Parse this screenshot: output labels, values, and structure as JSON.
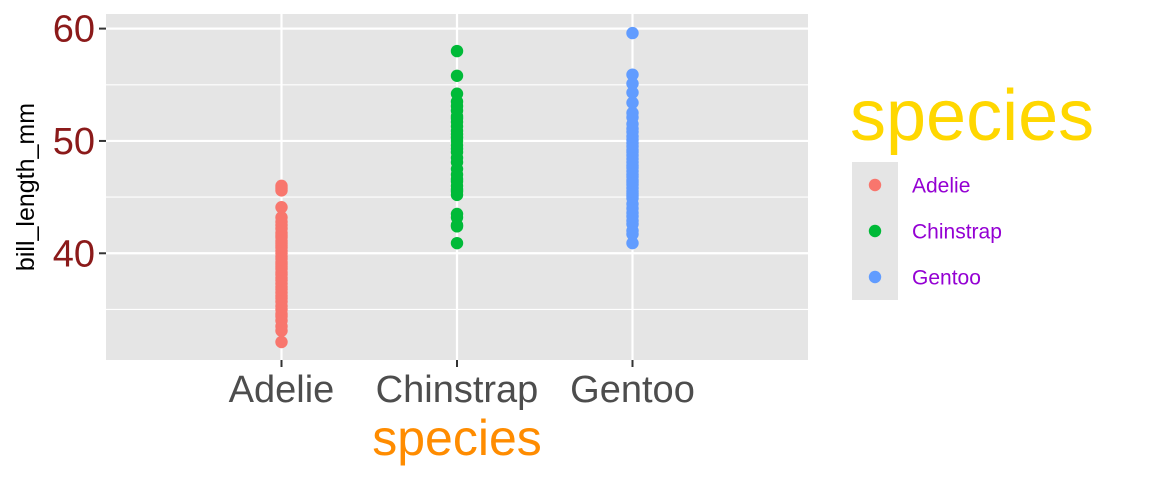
{
  "chart_data": {
    "type": "scatter",
    "xlabel": "species",
    "ylabel": "bill_length_mm",
    "categories": [
      "Adelie",
      "Chinstrap",
      "Gentoo"
    ],
    "ylim": [
      30.5,
      61.3
    ],
    "yticks": [
      40,
      50,
      60
    ],
    "ytick_labels": [
      "40",
      "50",
      "60"
    ],
    "grid": true,
    "legend": {
      "title": "species",
      "placement": "right",
      "entries": [
        "Adelie",
        "Chinstrap",
        "Gentoo"
      ]
    },
    "colors": {
      "Adelie": "#F8766D",
      "Chinstrap": "#00BA38",
      "Gentoo": "#619CFF",
      "ytick_text": "#8B1A1A",
      "xlabel_text": "#FF8C00",
      "legend_title_text": "#FFD700",
      "legend_text": "#9400D3"
    },
    "series": [
      {
        "name": "Adelie",
        "values": [
          32.1,
          33.1,
          33.5,
          34.0,
          34.4,
          34.6,
          35.0,
          35.3,
          35.7,
          36.0,
          36.2,
          36.5,
          36.8,
          37.0,
          37.3,
          37.6,
          37.8,
          38.1,
          38.3,
          38.6,
          38.8,
          39.0,
          39.2,
          39.5,
          39.7,
          40.0,
          40.2,
          40.5,
          40.7,
          40.9,
          41.1,
          41.4,
          41.6,
          41.8,
          42.2,
          42.5,
          42.8,
          43.2,
          44.1,
          45.6,
          45.8,
          46.0
        ]
      },
      {
        "name": "Chinstrap",
        "values": [
          40.9,
          42.4,
          42.5,
          43.2,
          43.5,
          45.2,
          45.5,
          45.7,
          46.0,
          46.4,
          46.6,
          47.0,
          47.5,
          48.1,
          48.5,
          49.0,
          49.3,
          49.6,
          50.0,
          50.3,
          50.6,
          50.9,
          51.3,
          51.7,
          52.0,
          52.2,
          52.7,
          53.1,
          53.5,
          54.2,
          55.8,
          58.0
        ]
      },
      {
        "name": "Gentoo",
        "values": [
          40.9,
          41.7,
          42.0,
          42.6,
          42.9,
          43.3,
          43.6,
          44.0,
          44.4,
          44.9,
          45.1,
          45.3,
          45.5,
          45.8,
          46.1,
          46.3,
          46.5,
          46.8,
          47.0,
          47.3,
          47.6,
          47.8,
          48.1,
          48.4,
          48.7,
          49.0,
          49.2,
          49.5,
          49.8,
          50.1,
          50.4,
          50.8,
          51.1,
          51.5,
          52.1,
          52.5,
          53.4,
          54.3,
          55.1,
          55.9,
          59.6
        ]
      }
    ]
  }
}
